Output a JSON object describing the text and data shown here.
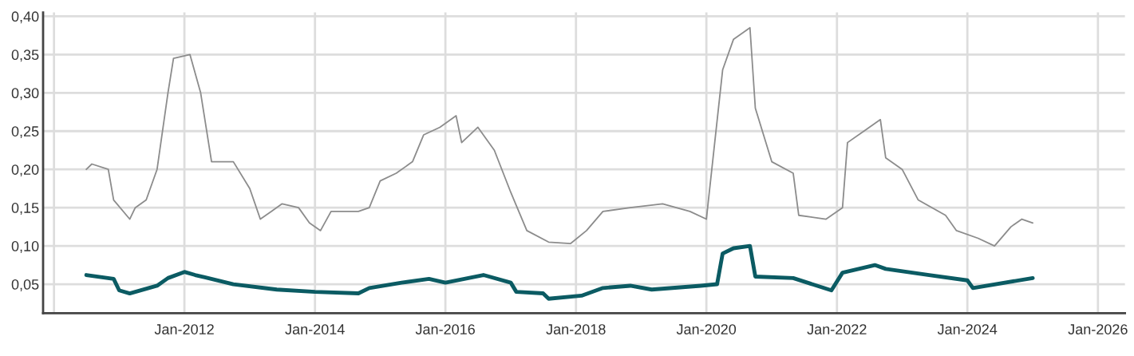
{
  "chart_data": {
    "type": "line",
    "xlim": [
      "2009-11",
      "2026-06"
    ],
    "xticks": [
      {
        "value": "2010-01",
        "label": null
      },
      {
        "value": "2012-01",
        "label": "Jan-2012"
      },
      {
        "value": "2014-01",
        "label": "Jan-2014"
      },
      {
        "value": "2016-01",
        "label": "Jan-2016"
      },
      {
        "value": "2018-01",
        "label": "Jan-2018"
      },
      {
        "value": "2020-01",
        "label": "Jan-2020"
      },
      {
        "value": "2022-01",
        "label": "Jan-2022"
      },
      {
        "value": "2024-01",
        "label": "Jan-2024"
      },
      {
        "value": "2026-01",
        "label": "Jan-2026"
      }
    ],
    "ylim": [
      0.012,
      0.405
    ],
    "yticks": [
      {
        "value": 0.05,
        "label": "0,05"
      },
      {
        "value": 0.1,
        "label": "0,10"
      },
      {
        "value": 0.15,
        "label": "0,15"
      },
      {
        "value": 0.2,
        "label": "0,20"
      },
      {
        "value": 0.25,
        "label": "0,25"
      },
      {
        "value": 0.3,
        "label": "0,30"
      },
      {
        "value": 0.35,
        "label": "0,35"
      },
      {
        "value": 0.4,
        "label": "0,40"
      }
    ],
    "grid": true,
    "series": [
      {
        "color": "#8c8c8c",
        "x": [
          "2010-07",
          "2010-08",
          "2010-11",
          "2010-12",
          "2011-03",
          "2011-04",
          "2011-06",
          "2011-08",
          "2011-10",
          "2011-11",
          "2012-02",
          "2012-04",
          "2012-06",
          "2012-10",
          "2013-01",
          "2013-03",
          "2013-05",
          "2013-07",
          "2013-10",
          "2013-12",
          "2014-02",
          "2014-04",
          "2014-09",
          "2014-11",
          "2015-01",
          "2015-04",
          "2015-07",
          "2015-09",
          "2015-12",
          "2016-03",
          "2016-04",
          "2016-07",
          "2016-10",
          "2017-01",
          "2017-04",
          "2017-08",
          "2017-12",
          "2018-03",
          "2018-06",
          "2018-11",
          "2019-05",
          "2019-10",
          "2020-01",
          "2020-04",
          "2020-06",
          "2020-09",
          "2020-10",
          "2021-01",
          "2021-05",
          "2021-06",
          "2021-11",
          "2022-02",
          "2022-03",
          "2022-06",
          "2022-09",
          "2022-10",
          "2023-01",
          "2023-04",
          "2023-09",
          "2023-11",
          "2024-03",
          "2024-06",
          "2024-09",
          "2024-11",
          "2025-01"
        ],
        "values": [
          0.2,
          0.207,
          0.2,
          0.16,
          0.135,
          0.15,
          0.16,
          0.2,
          0.3,
          0.345,
          0.35,
          0.3,
          0.21,
          0.21,
          0.175,
          0.135,
          0.145,
          0.155,
          0.15,
          0.13,
          0.12,
          0.145,
          0.145,
          0.15,
          0.185,
          0.195,
          0.21,
          0.245,
          0.255,
          0.27,
          0.235,
          0.255,
          0.225,
          0.17,
          0.12,
          0.105,
          0.103,
          0.12,
          0.145,
          0.15,
          0.155,
          0.145,
          0.135,
          0.33,
          0.37,
          0.385,
          0.28,
          0.21,
          0.195,
          0.14,
          0.135,
          0.15,
          0.235,
          0.25,
          0.265,
          0.215,
          0.2,
          0.16,
          0.14,
          0.12,
          0.11,
          0.1,
          0.125,
          0.135,
          0.13
        ]
      },
      {
        "color": "#0b5b63",
        "x": [
          "2010-07",
          "2010-12",
          "2011-01",
          "2011-03",
          "2011-08",
          "2011-10",
          "2012-01",
          "2012-03",
          "2012-10",
          "2013-06",
          "2014-01",
          "2014-09",
          "2014-11",
          "2015-05",
          "2015-10",
          "2016-01",
          "2016-08",
          "2017-01",
          "2017-02",
          "2017-07",
          "2017-08",
          "2018-02",
          "2018-06",
          "2018-11",
          "2019-03",
          "2019-12",
          "2020-03",
          "2020-04",
          "2020-06",
          "2020-09",
          "2020-10",
          "2021-05",
          "2021-12",
          "2022-02",
          "2022-08",
          "2022-10",
          "2023-06",
          "2024-01",
          "2024-02",
          "2025-01"
        ],
        "values": [
          0.062,
          0.057,
          0.042,
          0.038,
          0.048,
          0.058,
          0.066,
          0.062,
          0.05,
          0.043,
          0.04,
          0.038,
          0.045,
          0.052,
          0.057,
          0.052,
          0.062,
          0.052,
          0.04,
          0.038,
          0.031,
          0.035,
          0.045,
          0.048,
          0.043,
          0.048,
          0.05,
          0.09,
          0.097,
          0.1,
          0.06,
          0.058,
          0.042,
          0.065,
          0.075,
          0.07,
          0.062,
          0.055,
          0.045,
          0.058
        ]
      }
    ]
  }
}
